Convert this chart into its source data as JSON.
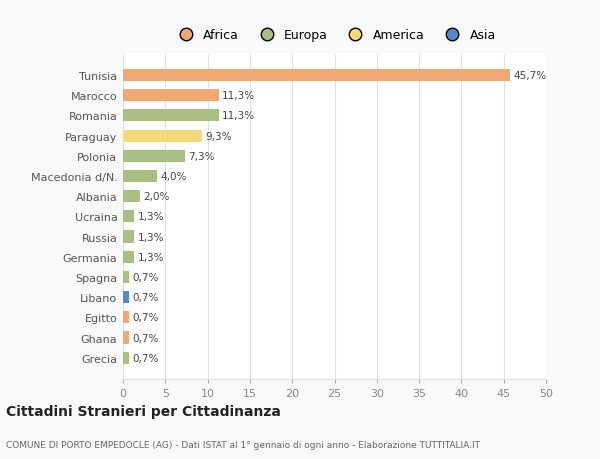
{
  "categories": [
    "Tunisia",
    "Marocco",
    "Romania",
    "Paraguay",
    "Polonia",
    "Macedonia d/N.",
    "Albania",
    "Ucraina",
    "Russia",
    "Germania",
    "Spagna",
    "Libano",
    "Egitto",
    "Ghana",
    "Grecia"
  ],
  "values": [
    45.7,
    11.3,
    11.3,
    9.3,
    7.3,
    4.0,
    2.0,
    1.3,
    1.3,
    1.3,
    0.7,
    0.7,
    0.7,
    0.7,
    0.7
  ],
  "labels": [
    "45,7%",
    "11,3%",
    "11,3%",
    "9,3%",
    "7,3%",
    "4,0%",
    "2,0%",
    "1,3%",
    "1,3%",
    "1,3%",
    "0,7%",
    "0,7%",
    "0,7%",
    "0,7%",
    "0,7%"
  ],
  "colors": [
    "#F0A875",
    "#F0A875",
    "#A8BE82",
    "#F5D87A",
    "#A8BE82",
    "#A8BE82",
    "#A8BE82",
    "#A8BE82",
    "#A8BE82",
    "#A8BE82",
    "#A8BE82",
    "#5588CC",
    "#F0A875",
    "#F0A875",
    "#A8BE82"
  ],
  "legend_labels": [
    "Africa",
    "Europa",
    "America",
    "Asia"
  ],
  "legend_colors": [
    "#F0A875",
    "#A8BE82",
    "#F5D87A",
    "#5588CC"
  ],
  "xlim": [
    0,
    50
  ],
  "xticks": [
    0,
    5,
    10,
    15,
    20,
    25,
    30,
    35,
    40,
    45,
    50
  ],
  "title": "Cittadini Stranieri per Cittadinanza",
  "subtitle": "COMUNE DI PORTO EMPEDOCLE (AG) - Dati ISTAT al 1° gennaio di ogni anno - Elaborazione TUTTITALIA.IT",
  "background_color": "#f9f9f9",
  "bar_bg_color": "#ffffff",
  "grid_color": "#e0e0e0"
}
